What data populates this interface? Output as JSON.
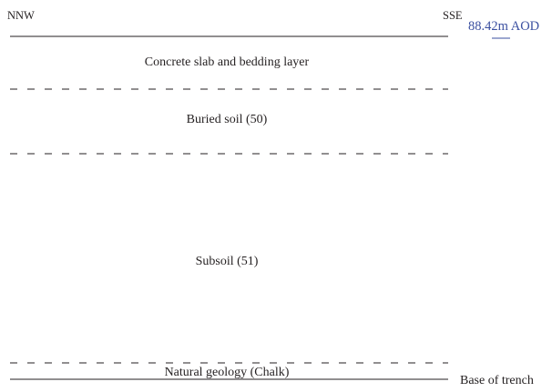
{
  "orientation": {
    "left": "NNW",
    "right": "SSE"
  },
  "datum": {
    "text": "88.42m AOD",
    "color": "#3a4fa0"
  },
  "layers": [
    {
      "label": "Concrete slab and bedding layer"
    },
    {
      "label": "Buried soil (50)"
    },
    {
      "label": "Subsoil (51)"
    },
    {
      "label": "Natural geology (Chalk)"
    }
  ],
  "base_label": "Base of trench",
  "colors": {
    "line": "#231f20",
    "text": "#231f20",
    "datum": "#3a4fa0"
  }
}
